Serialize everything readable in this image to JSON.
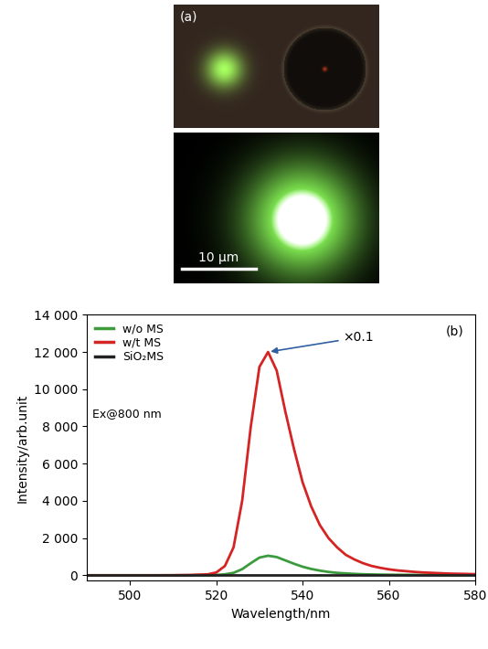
{
  "chart_data": {
    "type": "line",
    "panel_label": "(b)",
    "x_label": "Wavelength/nm",
    "y_label": "Intensity/arb.unit",
    "annotations": [
      "Ex@800 nm",
      "×0.1"
    ],
    "x": [
      490,
      494,
      498,
      502,
      506,
      510,
      514,
      518,
      520,
      522,
      524,
      526,
      528,
      530,
      532,
      534,
      536,
      538,
      540,
      542,
      544,
      546,
      548,
      550,
      552,
      554,
      556,
      558,
      560,
      562,
      564,
      566,
      568,
      570,
      572,
      574,
      576,
      578,
      580
    ],
    "series": [
      {
        "name": "w/o MS",
        "color": "#3c9b3c",
        "values": [
          0,
          0,
          0,
          0,
          0,
          0,
          5,
          10,
          20,
          50,
          130,
          330,
          650,
          950,
          1050,
          980,
          800,
          620,
          460,
          340,
          250,
          180,
          130,
          100,
          75,
          55,
          45,
          35,
          30,
          25,
          22,
          20,
          18,
          16,
          15,
          14,
          13,
          12,
          12
        ]
      },
      {
        "name": "w/t MS",
        "color": "#d42424",
        "values": [
          0,
          0,
          0,
          0,
          0,
          5,
          15,
          50,
          150,
          500,
          1500,
          4000,
          8000,
          11200,
          12000,
          11000,
          8800,
          6800,
          5000,
          3700,
          2700,
          2000,
          1500,
          1100,
          850,
          650,
          500,
          400,
          320,
          260,
          220,
          180,
          150,
          130,
          110,
          90,
          80,
          70,
          60
        ]
      },
      {
        "name": "SiO₂MS",
        "color": "#222222",
        "values": [
          0,
          0,
          0,
          0,
          0,
          0,
          0,
          0,
          0,
          0,
          0,
          0,
          0,
          0,
          0,
          0,
          0,
          0,
          0,
          0,
          0,
          0,
          0,
          0,
          0,
          0,
          0,
          0,
          0,
          0,
          0,
          0,
          0,
          0,
          0,
          0,
          0,
          0,
          0
        ]
      }
    ],
    "xlim": [
      490,
      580
    ],
    "xticks": [
      500,
      520,
      540,
      560,
      580
    ],
    "ylim": [
      -300,
      14000
    ],
    "yticks": [
      0,
      {
        "value": 2000,
        "label": "2 000"
      },
      {
        "value": 4000,
        "label": "4 000"
      },
      {
        "value": 6000,
        "label": "6 000"
      },
      {
        "value": 8000,
        "label": "8 000"
      },
      {
        "value": 10000,
        "label": "10 000"
      },
      {
        "value": 12000,
        "label": "12 000"
      },
      {
        "value": 14000,
        "label": "14 000"
      }
    ],
    "legend": "upper left",
    "grid": false
  },
  "image_panel": {
    "label": "(a)",
    "scale_bar": "10 μm"
  }
}
